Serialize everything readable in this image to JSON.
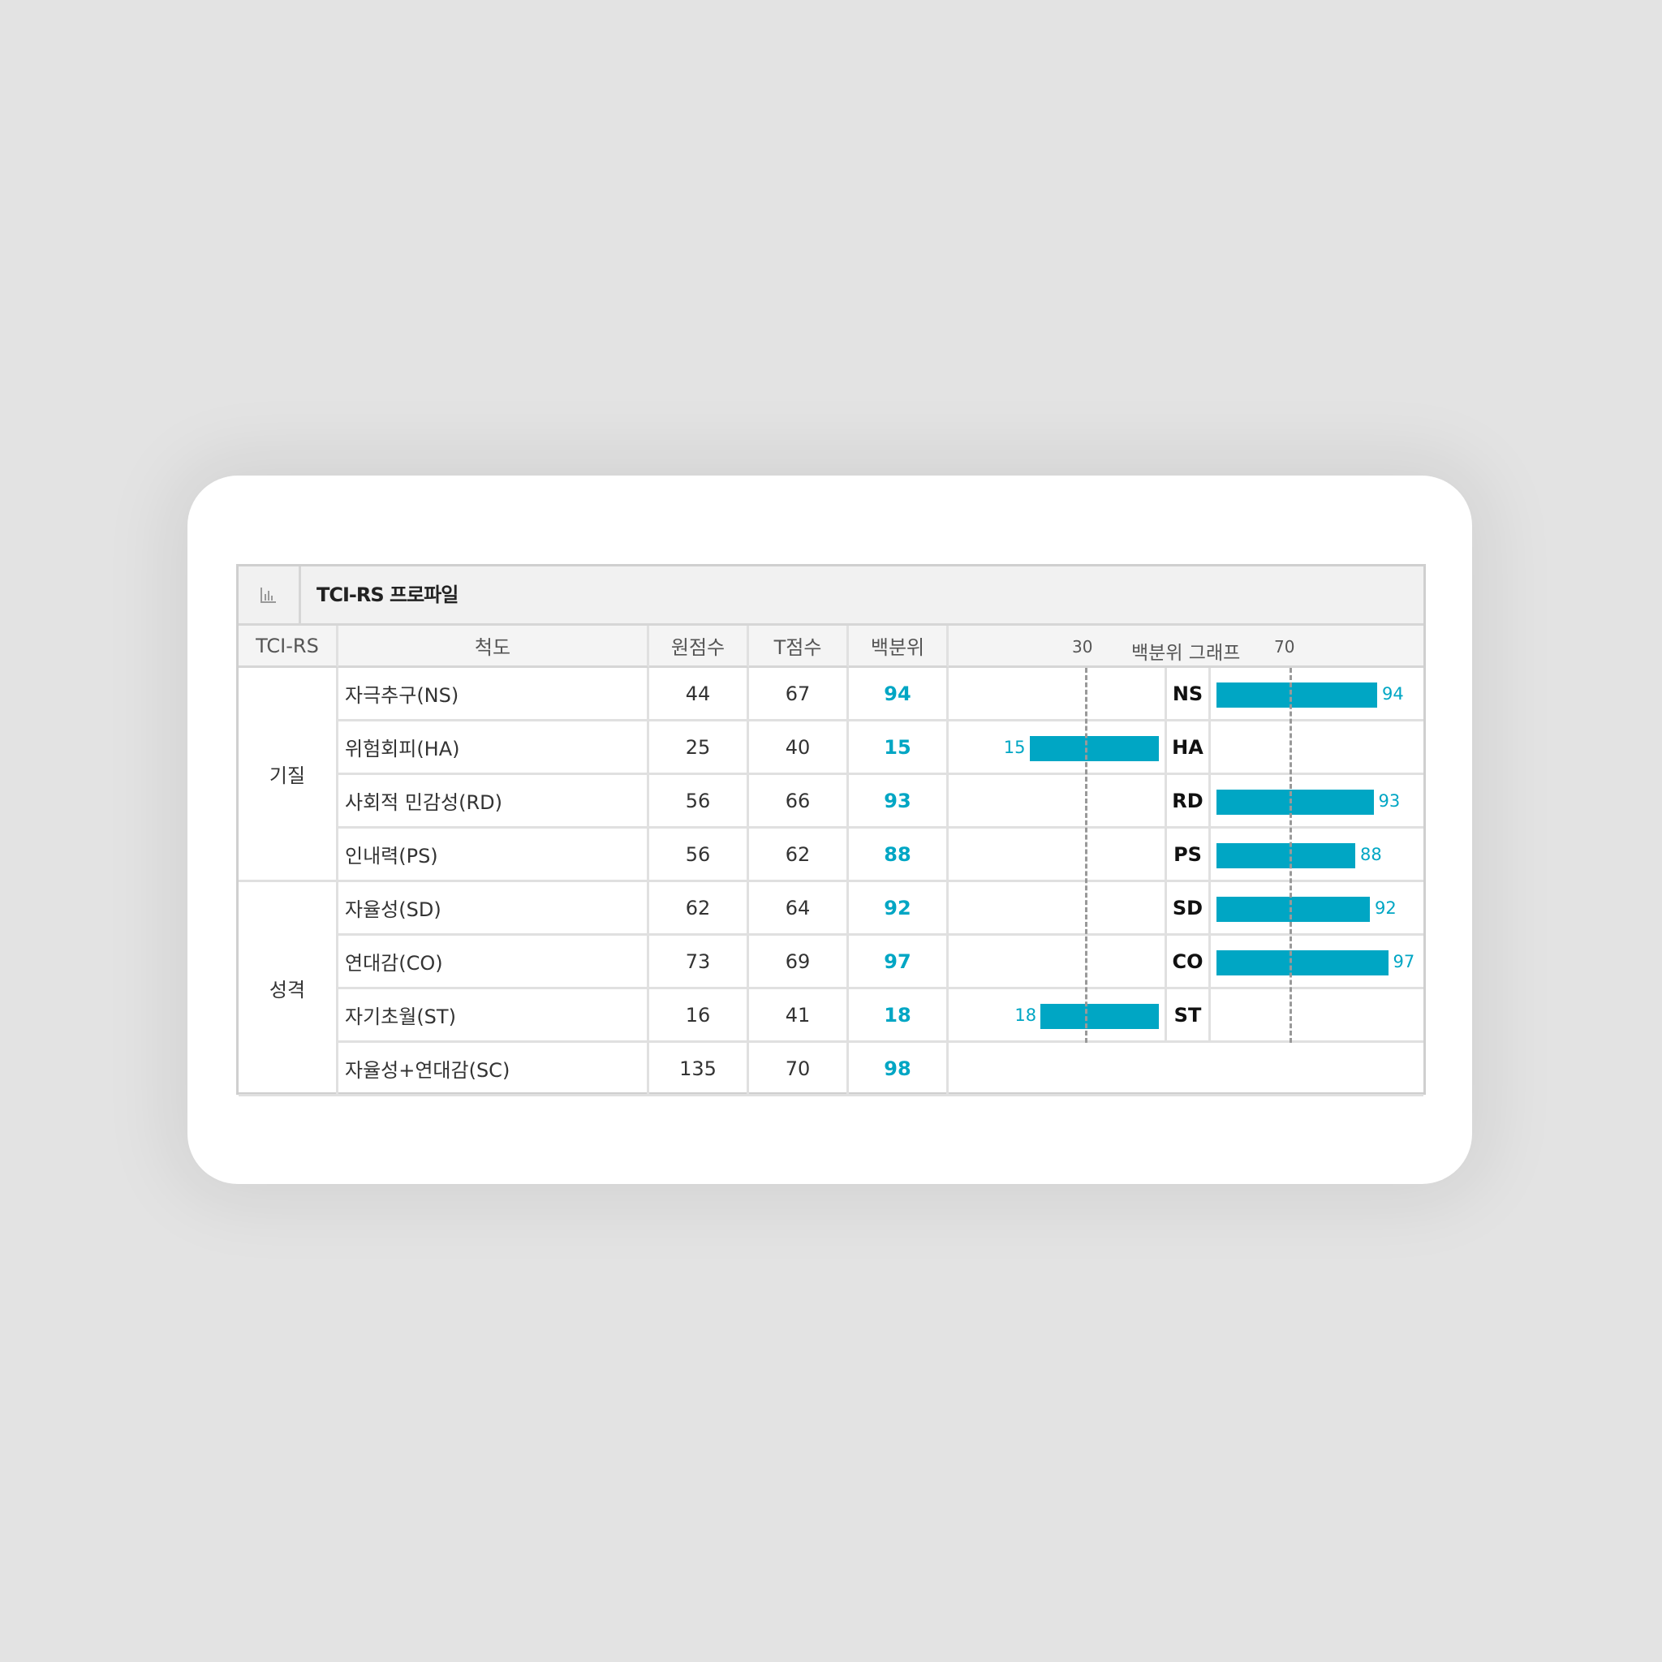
{
  "title": "TCI-RS 프로파일",
  "headers": {
    "group": "TCI-RS",
    "scale": "척도",
    "raw": "원점수",
    "t": "T점수",
    "pct": "백분위",
    "graph": "백분위 그래프",
    "tick_left": "30",
    "tick_right": "70"
  },
  "groups": [
    {
      "label": "기질",
      "rows": 4
    },
    {
      "label": "성격",
      "rows": 4
    }
  ],
  "rows": [
    {
      "scale": "자극추구(NS)",
      "raw": "44",
      "t": "67",
      "pct": "94",
      "code": "NS",
      "value": 94
    },
    {
      "scale": "위험회피(HA)",
      "raw": "25",
      "t": "40",
      "pct": "15",
      "code": "HA",
      "value": 15
    },
    {
      "scale": "사회적 민감성(RD)",
      "raw": "56",
      "t": "66",
      "pct": "93",
      "code": "RD",
      "value": 93
    },
    {
      "scale": "인내력(PS)",
      "raw": "56",
      "t": "62",
      "pct": "88",
      "code": "PS",
      "value": 88
    },
    {
      "scale": "자율성(SD)",
      "raw": "62",
      "t": "64",
      "pct": "92",
      "code": "SD",
      "value": 92
    },
    {
      "scale": "연대감(CO)",
      "raw": "73",
      "t": "69",
      "pct": "97",
      "code": "CO",
      "value": 97
    },
    {
      "scale": "자기초월(ST)",
      "raw": "16",
      "t": "41",
      "pct": "18",
      "code": "ST",
      "value": 18
    },
    {
      "scale": "자율성+연대감(SC)",
      "raw": "135",
      "t": "70",
      "pct": "98"
    }
  ],
  "colors": {
    "bar": "#00a6c4",
    "accent": "#00a6c4"
  },
  "icon": "bar-chart-icon"
}
